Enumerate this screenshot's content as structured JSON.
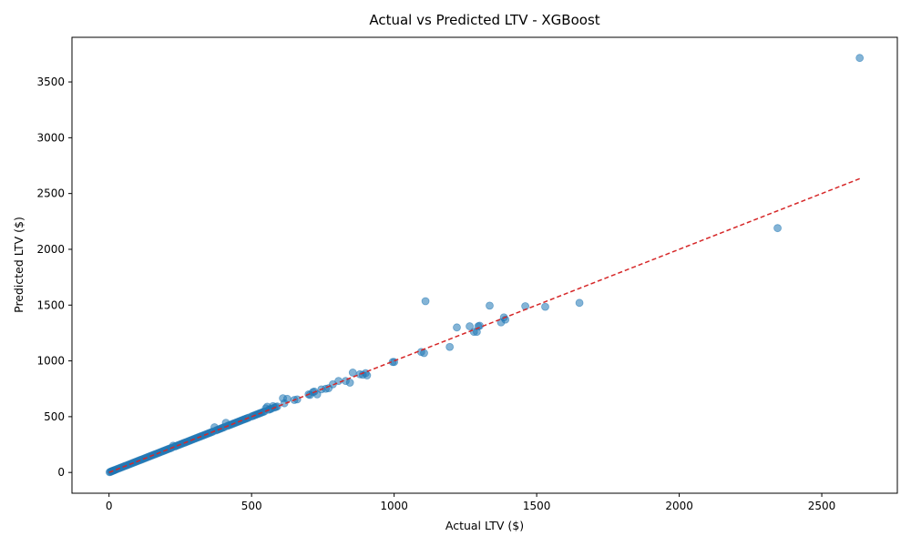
{
  "chart_data": {
    "type": "scatter",
    "title": "Actual vs Predicted LTV - XGBoost",
    "xlabel": "Actual LTV ($)",
    "ylabel": "Predicted LTV ($)",
    "xlim": [
      -130,
      2765
    ],
    "ylim": [
      -186,
      3900
    ],
    "xticks": [
      0,
      500,
      1000,
      1500,
      2000,
      2500
    ],
    "yticks": [
      0,
      500,
      1000,
      1500,
      2000,
      2500,
      3000,
      3500
    ],
    "xtick_labels": [
      "0",
      "500",
      "1000",
      "1500",
      "2000",
      "2500"
    ],
    "ytick_labels": [
      "0",
      "500",
      "1000",
      "1500",
      "2000",
      "2500",
      "3000",
      "3500"
    ],
    "grid": false,
    "point_color": "#1f77b4",
    "point_opacity": 0.55,
    "reference_line": {
      "style": "dashed",
      "color": "#d62728",
      "from": [
        0,
        0
      ],
      "to": [
        2633,
        2633
      ]
    },
    "series": [
      {
        "x": [
          2,
          5,
          8,
          10,
          12,
          15,
          18,
          20,
          25,
          30,
          35,
          40,
          45,
          50,
          55,
          60,
          65,
          70,
          75,
          80,
          85,
          90,
          95,
          100,
          105,
          110,
          115,
          120,
          125,
          130,
          135,
          140,
          145,
          150,
          155,
          160,
          165,
          170,
          175,
          180,
          185,
          190,
          195,
          200,
          205,
          210,
          215,
          220,
          225,
          230,
          235,
          240,
          245,
          250,
          255,
          260,
          265,
          270,
          275,
          280,
          285,
          290,
          295,
          300,
          305,
          310,
          315,
          320,
          325,
          330,
          335,
          340,
          345,
          350,
          355,
          360,
          365,
          370,
          375,
          380,
          385,
          390,
          395,
          400,
          405,
          410,
          415,
          420,
          425,
          430,
          435,
          440,
          445,
          450,
          455,
          460,
          465,
          470,
          475,
          480,
          485,
          490,
          500,
          505,
          510,
          515,
          520,
          525,
          530,
          535,
          540,
          545,
          550,
          555,
          560,
          565,
          570,
          575,
          580,
          585,
          590,
          610,
          615,
          625,
          650,
          660,
          700,
          705,
          715,
          720,
          730,
          745,
          760,
          770,
          785,
          805,
          830,
          845,
          855,
          880,
          890,
          900,
          905,
          995,
          1000,
          1095,
          1105,
          1110,
          1195,
          1220,
          1265,
          1280,
          1290,
          1295,
          1300,
          1335,
          1375,
          1385,
          1390,
          1460,
          1530,
          1650,
          2345,
          2633
        ],
        "y": [
          3,
          6,
          10,
          12,
          14,
          17,
          20,
          22,
          27,
          32,
          37,
          42,
          47,
          52,
          57,
          62,
          67,
          72,
          77,
          82,
          87,
          92,
          97,
          102,
          107,
          112,
          117,
          122,
          127,
          132,
          137,
          142,
          147,
          152,
          157,
          162,
          167,
          172,
          177,
          182,
          187,
          192,
          197,
          202,
          207,
          212,
          217,
          222,
          240,
          232,
          237,
          242,
          247,
          252,
          257,
          262,
          267,
          272,
          277,
          282,
          287,
          292,
          297,
          302,
          307,
          312,
          317,
          322,
          327,
          332,
          337,
          342,
          347,
          352,
          357,
          362,
          367,
          405,
          377,
          382,
          387,
          392,
          397,
          402,
          407,
          445,
          417,
          422,
          427,
          432,
          437,
          442,
          447,
          452,
          457,
          462,
          467,
          472,
          477,
          482,
          487,
          492,
          502,
          507,
          512,
          517,
          522,
          527,
          532,
          537,
          542,
          547,
          575,
          590,
          562,
          567,
          572,
          595,
          582,
          587,
          592,
          665,
          620,
          660,
          650,
          655,
          700,
          695,
          720,
          725,
          700,
          745,
          750,
          755,
          790,
          820,
          820,
          805,
          895,
          880,
          875,
          890,
          870,
          990,
          990,
          1080,
          1070,
          1535,
          1125,
          1300,
          1310,
          1260,
          1260,
          1310,
          1315,
          1495,
          1345,
          1390,
          1370,
          1490,
          1485,
          1520,
          2190,
          3715
        ]
      }
    ]
  }
}
